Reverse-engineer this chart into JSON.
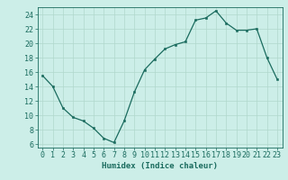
{
  "x": [
    0,
    1,
    2,
    3,
    4,
    5,
    6,
    7,
    8,
    9,
    10,
    11,
    12,
    13,
    14,
    15,
    16,
    17,
    18,
    19,
    20,
    21,
    22,
    23
  ],
  "y": [
    15.5,
    14.0,
    11.0,
    9.7,
    9.2,
    8.2,
    6.8,
    6.2,
    9.2,
    13.2,
    16.3,
    17.8,
    19.2,
    19.8,
    20.2,
    23.2,
    23.5,
    24.5,
    22.8,
    21.8,
    21.8,
    22.0,
    18.0,
    15.0
  ],
  "line_color": "#1a6b5e",
  "marker_color": "#1a6b5e",
  "bg_color": "#cceee8",
  "grid_color": "#b0d8cc",
  "xlabel": "Humidex (Indice chaleur)",
  "xlim": [
    -0.5,
    23.5
  ],
  "ylim": [
    5.5,
    25.0
  ],
  "yticks": [
    6,
    8,
    10,
    12,
    14,
    16,
    18,
    20,
    22,
    24
  ],
  "xticks": [
    0,
    1,
    2,
    3,
    4,
    5,
    6,
    7,
    8,
    9,
    10,
    11,
    12,
    13,
    14,
    15,
    16,
    17,
    18,
    19,
    20,
    21,
    22,
    23
  ],
  "label_fontsize": 6.5,
  "tick_fontsize": 6.0,
  "linewidth": 0.9,
  "markersize": 2.0
}
